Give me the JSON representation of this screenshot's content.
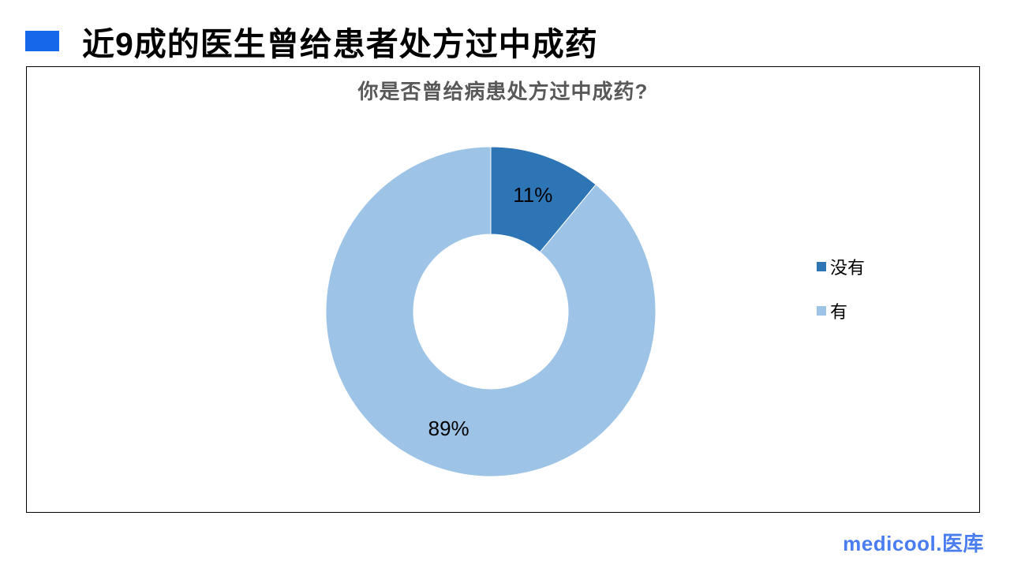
{
  "header": {
    "title": "近9成的医生曾给患者处方过中成药",
    "marker_color": "#1767EB"
  },
  "chart_data": {
    "type": "doughnut",
    "title": "你是否曾给病患处方过中成药?",
    "title_color": "#595959",
    "categories": [
      "没有",
      "有"
    ],
    "values": [
      11,
      89
    ],
    "slices": [
      {
        "label": "没有",
        "value": 11,
        "display_label": "11%",
        "color": "#2E75B6"
      },
      {
        "label": "有",
        "value": 89,
        "display_label": "89%",
        "color": "#9DC3E6"
      }
    ],
    "start_angle_deg": 0,
    "direction": "clockwise",
    "hole_ratio": 0.47,
    "legend_position": "right",
    "data_label_color": "#000000",
    "slice_border_color": "#FFFFFF"
  },
  "footer": {
    "logo_text": "medicool.医库",
    "logo_color": "#4A7DF0"
  }
}
